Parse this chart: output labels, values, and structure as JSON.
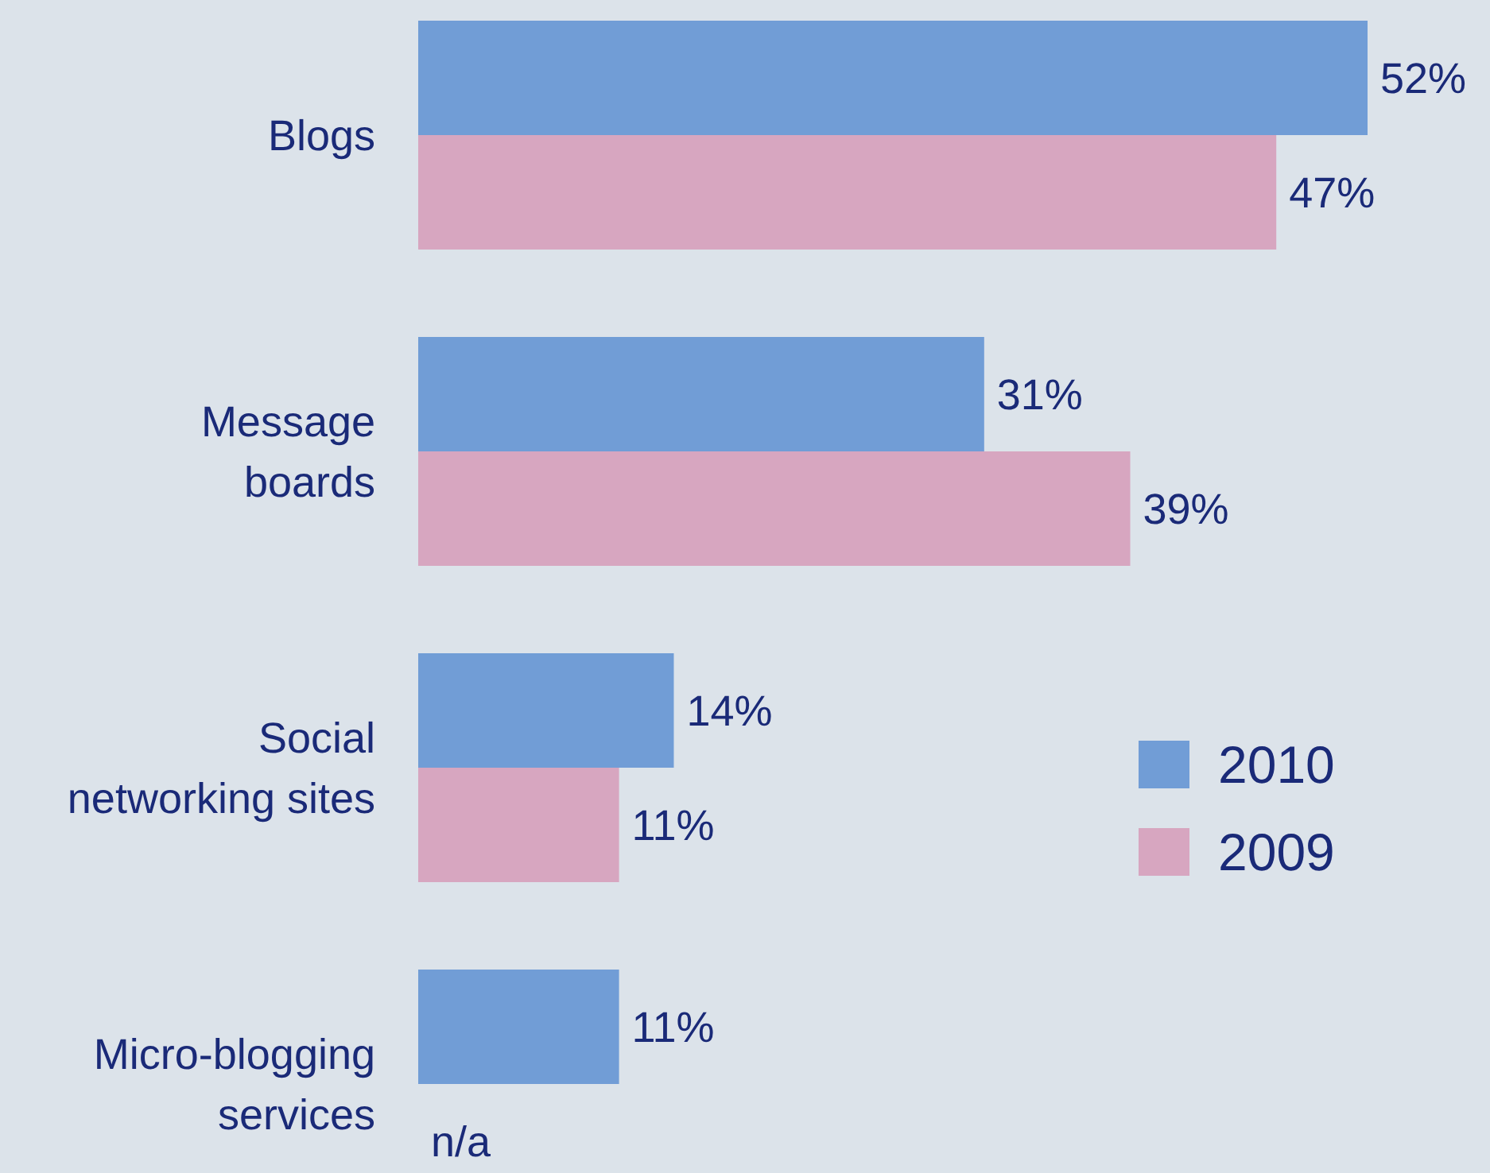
{
  "chart_data": {
    "type": "bar",
    "orientation": "horizontal",
    "categories": [
      "Blogs",
      "Message\nboards",
      "Social\nnetworking sites",
      "Micro-blogging\nservices"
    ],
    "series": [
      {
        "name": "2010",
        "color": "#719dd6",
        "values": [
          52,
          31,
          14,
          11
        ],
        "value_labels": [
          "52%",
          "31%",
          "14%",
          "11%"
        ]
      },
      {
        "name": "2009",
        "color": "#d7a6c0",
        "values": [
          47,
          39,
          11,
          null
        ],
        "value_labels": [
          "47%",
          "39%",
          "11%",
          "n/a"
        ]
      }
    ],
    "legend": "right",
    "grid": false
  }
}
